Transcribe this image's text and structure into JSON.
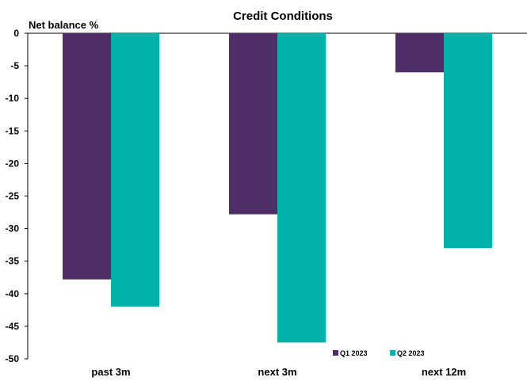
{
  "chart_data": {
    "type": "bar",
    "title": "Credit Conditions",
    "ylabel": "Net balance %",
    "xlabel": "",
    "categories": [
      "past 3m",
      "next 3m",
      "next 12m"
    ],
    "series": [
      {
        "name": "Q1 2023",
        "color": "#4f2d67",
        "values": [
          -37.8,
          -27.8,
          -6.0
        ]
      },
      {
        "name": "Q2 2023",
        "color": "#00b2a9",
        "values": [
          -42.0,
          -47.5,
          -33.0
        ]
      }
    ],
    "ylim": [
      -50,
      0
    ],
    "yticks": [
      0,
      -5,
      -10,
      -15,
      -20,
      -25,
      -30,
      -35,
      -40,
      -45,
      -50
    ],
    "grid": false,
    "legend_position": "bottom-right"
  }
}
